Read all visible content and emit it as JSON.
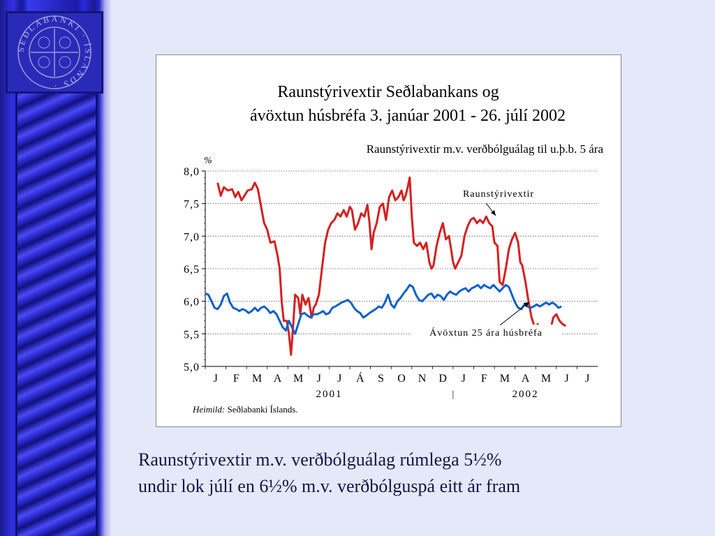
{
  "slide": {
    "caption_line1": "Raunstýrivextir m.v. verðbólguálag rúmlega 5½%",
    "caption_line2": "undir lok júlí en 6½% m.v. verðbólguspá eitt ár fram"
  },
  "logo": {
    "ring_text": "SEÐLABANKI · ÍSLANDS ·",
    "colors": {
      "ring": "#9a9ad8",
      "fill": "#2a2ab8"
    }
  },
  "chart_data": {
    "type": "line",
    "title_line1": "Raunstýrivextir Seðlabankans og",
    "title_line2": "ávöxtun húsbréfa 3. janúar 2001 - 26. júlí 2002",
    "subtitle": "Raunstýrivextir m.v. verðbólguálag til u.þ.b. 5 ára",
    "ylabel": "%",
    "ylim": [
      5.0,
      8.0
    ],
    "yticks": [
      "8,0",
      "7,5",
      "7,0",
      "6,5",
      "6,0",
      "5,5",
      "5,0"
    ],
    "ytick_values": [
      8.0,
      7.5,
      7.0,
      6.5,
      6.0,
      5.5,
      5.0
    ],
    "grid": true,
    "months": [
      "J",
      "F",
      "M",
      "A",
      "M",
      "J",
      "J",
      "Á",
      "S",
      "O",
      "N",
      "D",
      "J",
      "F",
      "M",
      "A",
      "M",
      "J",
      "J"
    ],
    "year_labels": [
      "2001",
      "2002"
    ],
    "year_separator": "|",
    "source_italic": "Heimild:",
    "source_text": " Seðlabanki Íslands.",
    "x_range_months": [
      0,
      19
    ],
    "series": [
      {
        "name": "Raunstýrivextir",
        "color": "#d42020",
        "points": [
          [
            0.6,
            7.82
          ],
          [
            0.75,
            7.62
          ],
          [
            0.9,
            7.75
          ],
          [
            1.1,
            7.7
          ],
          [
            1.3,
            7.72
          ],
          [
            1.45,
            7.6
          ],
          [
            1.6,
            7.68
          ],
          [
            1.75,
            7.55
          ],
          [
            1.9,
            7.62
          ],
          [
            2.05,
            7.7
          ],
          [
            2.25,
            7.72
          ],
          [
            2.4,
            7.82
          ],
          [
            2.55,
            7.72
          ],
          [
            2.7,
            7.45
          ],
          [
            2.85,
            7.2
          ],
          [
            3.0,
            7.1
          ],
          [
            3.15,
            6.9
          ],
          [
            3.35,
            6.92
          ],
          [
            3.5,
            6.7
          ],
          [
            3.6,
            6.5
          ],
          [
            3.7,
            6.0
          ],
          [
            3.8,
            5.7
          ],
          [
            3.95,
            5.7
          ],
          [
            4.05,
            5.5
          ],
          [
            4.15,
            5.18
          ],
          [
            4.25,
            5.6
          ],
          [
            4.35,
            6.1
          ],
          [
            4.5,
            6.05
          ],
          [
            4.6,
            5.8
          ],
          [
            4.7,
            6.1
          ],
          [
            4.85,
            5.95
          ],
          [
            5.0,
            6.05
          ],
          [
            5.15,
            5.75
          ],
          [
            5.25,
            5.9
          ],
          [
            5.35,
            5.95
          ],
          [
            5.5,
            6.1
          ],
          [
            5.65,
            6.5
          ],
          [
            5.8,
            6.9
          ],
          [
            5.95,
            7.1
          ],
          [
            6.1,
            7.2
          ],
          [
            6.25,
            7.25
          ],
          [
            6.4,
            7.35
          ],
          [
            6.55,
            7.3
          ],
          [
            6.7,
            7.4
          ],
          [
            6.85,
            7.3
          ],
          [
            7.0,
            7.45
          ],
          [
            7.1,
            7.4
          ],
          [
            7.25,
            7.1
          ],
          [
            7.4,
            7.2
          ],
          [
            7.55,
            7.35
          ],
          [
            7.7,
            7.3
          ],
          [
            7.85,
            7.48
          ],
          [
            7.95,
            7.2
          ],
          [
            8.05,
            6.8
          ],
          [
            8.15,
            7.05
          ],
          [
            8.3,
            7.2
          ],
          [
            8.45,
            7.45
          ],
          [
            8.6,
            7.5
          ],
          [
            8.75,
            7.25
          ],
          [
            8.9,
            7.6
          ],
          [
            9.05,
            7.7
          ],
          [
            9.2,
            7.55
          ],
          [
            9.35,
            7.6
          ],
          [
            9.5,
            7.7
          ],
          [
            9.6,
            7.55
          ],
          [
            9.7,
            7.62
          ],
          [
            9.8,
            7.75
          ],
          [
            9.9,
            7.9
          ],
          [
            10.0,
            7.3
          ],
          [
            10.1,
            6.9
          ],
          [
            10.25,
            6.85
          ],
          [
            10.4,
            6.9
          ],
          [
            10.55,
            6.8
          ],
          [
            10.7,
            6.9
          ],
          [
            10.85,
            6.6
          ],
          [
            10.95,
            6.5
          ],
          [
            11.05,
            6.55
          ],
          [
            11.2,
            6.85
          ],
          [
            11.35,
            7.05
          ],
          [
            11.5,
            7.2
          ],
          [
            11.65,
            6.95
          ],
          [
            11.8,
            7.0
          ],
          [
            11.9,
            6.8
          ],
          [
            12.0,
            6.6
          ],
          [
            12.1,
            6.5
          ],
          [
            12.25,
            6.6
          ],
          [
            12.4,
            6.7
          ],
          [
            12.55,
            7.0
          ],
          [
            12.7,
            7.15
          ],
          [
            12.85,
            7.25
          ],
          [
            13.0,
            7.28
          ],
          [
            13.15,
            7.2
          ],
          [
            13.3,
            7.25
          ],
          [
            13.45,
            7.2
          ],
          [
            13.6,
            7.3
          ],
          [
            13.75,
            7.2
          ],
          [
            13.9,
            7.15
          ],
          [
            14.0,
            6.9
          ],
          [
            14.15,
            6.85
          ],
          [
            14.25,
            6.3
          ],
          [
            14.4,
            6.25
          ],
          [
            14.55,
            6.5
          ],
          [
            14.7,
            6.8
          ],
          [
            14.85,
            6.95
          ],
          [
            15.0,
            7.05
          ],
          [
            15.15,
            6.9
          ],
          [
            15.25,
            6.6
          ],
          [
            15.35,
            6.55
          ],
          [
            15.5,
            6.3
          ],
          [
            15.65,
            6.0
          ],
          [
            15.8,
            5.75
          ],
          [
            15.95,
            5.6
          ],
          [
            16.1,
            5.65
          ],
          [
            16.25,
            5.5
          ],
          [
            16.4,
            5.55
          ],
          [
            16.55,
            5.6
          ],
          [
            16.7,
            5.55
          ],
          [
            16.85,
            5.75
          ],
          [
            17.0,
            5.8
          ],
          [
            17.15,
            5.7
          ],
          [
            17.3,
            5.65
          ],
          [
            17.45,
            5.62
          ]
        ]
      },
      {
        "name": "Ávöxtun 25 ára húsbréfa",
        "color": "#1060c8",
        "points": [
          [
            0.0,
            6.12
          ],
          [
            0.15,
            6.1
          ],
          [
            0.3,
            6.0
          ],
          [
            0.45,
            5.9
          ],
          [
            0.6,
            5.88
          ],
          [
            0.75,
            5.95
          ],
          [
            0.9,
            6.08
          ],
          [
            1.05,
            6.12
          ],
          [
            1.2,
            5.98
          ],
          [
            1.35,
            5.9
          ],
          [
            1.5,
            5.88
          ],
          [
            1.65,
            5.85
          ],
          [
            1.8,
            5.88
          ],
          [
            1.95,
            5.86
          ],
          [
            2.1,
            5.82
          ],
          [
            2.25,
            5.85
          ],
          [
            2.4,
            5.9
          ],
          [
            2.55,
            5.85
          ],
          [
            2.7,
            5.9
          ],
          [
            2.85,
            5.92
          ],
          [
            3.0,
            5.88
          ],
          [
            3.15,
            5.82
          ],
          [
            3.3,
            5.85
          ],
          [
            3.45,
            5.8
          ],
          [
            3.6,
            5.7
          ],
          [
            3.75,
            5.6
          ],
          [
            3.9,
            5.55
          ],
          [
            4.05,
            5.7
          ],
          [
            4.2,
            5.6
          ],
          [
            4.35,
            5.5
          ],
          [
            4.5,
            5.65
          ],
          [
            4.65,
            5.8
          ],
          [
            4.8,
            5.82
          ],
          [
            4.95,
            5.78
          ],
          [
            5.1,
            5.75
          ],
          [
            5.25,
            5.8
          ],
          [
            5.4,
            5.8
          ],
          [
            5.55,
            5.82
          ],
          [
            5.7,
            5.85
          ],
          [
            5.85,
            5.8
          ],
          [
            6.0,
            5.82
          ],
          [
            6.15,
            5.9
          ],
          [
            6.3,
            5.92
          ],
          [
            6.45,
            5.95
          ],
          [
            6.6,
            5.98
          ],
          [
            6.75,
            6.0
          ],
          [
            6.9,
            6.02
          ],
          [
            7.05,
            5.98
          ],
          [
            7.2,
            5.9
          ],
          [
            7.35,
            5.85
          ],
          [
            7.5,
            5.82
          ],
          [
            7.65,
            5.75
          ],
          [
            7.8,
            5.78
          ],
          [
            7.95,
            5.82
          ],
          [
            8.1,
            5.85
          ],
          [
            8.25,
            5.88
          ],
          [
            8.4,
            5.92
          ],
          [
            8.55,
            5.9
          ],
          [
            8.7,
            5.98
          ],
          [
            8.85,
            6.1
          ],
          [
            9.0,
            5.95
          ],
          [
            9.15,
            5.9
          ],
          [
            9.3,
            6.0
          ],
          [
            9.45,
            6.05
          ],
          [
            9.6,
            6.12
          ],
          [
            9.75,
            6.18
          ],
          [
            9.9,
            6.25
          ],
          [
            10.05,
            6.22
          ],
          [
            10.2,
            6.1
          ],
          [
            10.35,
            6.02
          ],
          [
            10.5,
            6.0
          ],
          [
            10.65,
            6.05
          ],
          [
            10.8,
            6.1
          ],
          [
            10.95,
            6.12
          ],
          [
            11.1,
            6.05
          ],
          [
            11.25,
            6.1
          ],
          [
            11.4,
            6.08
          ],
          [
            11.55,
            6.02
          ],
          [
            11.7,
            6.1
          ],
          [
            11.85,
            6.15
          ],
          [
            12.0,
            6.12
          ],
          [
            12.15,
            6.1
          ],
          [
            12.3,
            6.15
          ],
          [
            12.45,
            6.18
          ],
          [
            12.6,
            6.2
          ],
          [
            12.75,
            6.15
          ],
          [
            12.9,
            6.2
          ],
          [
            13.05,
            6.22
          ],
          [
            13.2,
            6.25
          ],
          [
            13.35,
            6.2
          ],
          [
            13.5,
            6.25
          ],
          [
            13.65,
            6.22
          ],
          [
            13.8,
            6.2
          ],
          [
            13.95,
            6.25
          ],
          [
            14.1,
            6.2
          ],
          [
            14.25,
            6.15
          ],
          [
            14.4,
            6.2
          ],
          [
            14.55,
            6.25
          ],
          [
            14.7,
            6.22
          ],
          [
            14.85,
            6.1
          ],
          [
            15.0,
            5.98
          ],
          [
            15.15,
            5.9
          ],
          [
            15.3,
            5.88
          ],
          [
            15.45,
            5.95
          ],
          [
            15.6,
            5.92
          ],
          [
            15.75,
            5.9
          ],
          [
            15.9,
            5.92
          ],
          [
            16.05,
            5.95
          ],
          [
            16.2,
            5.92
          ],
          [
            16.35,
            5.95
          ],
          [
            16.5,
            5.98
          ],
          [
            16.65,
            5.95
          ],
          [
            16.8,
            5.98
          ],
          [
            16.95,
            5.95
          ],
          [
            17.1,
            5.9
          ],
          [
            17.25,
            5.92
          ]
        ]
      }
    ],
    "annotations": [
      {
        "text": "Raunstýrivextir",
        "target_series": 0
      },
      {
        "text": "Ávöxtun 25 ára húsbréfa",
        "target_series": 1
      }
    ]
  }
}
